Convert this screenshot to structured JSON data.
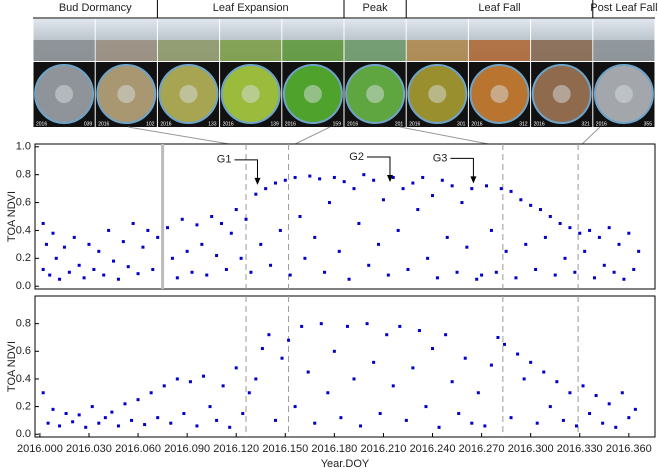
{
  "photo_strip": {
    "phases": [
      "Bud Dormancy",
      "Leaf Expansion",
      "Peak",
      "Leaf Fall",
      "Post Leaf Fall"
    ],
    "photos": [
      {
        "year": "2016",
        "doy": "039"
      },
      {
        "year": "2016",
        "doy": "102"
      },
      {
        "year": "2016",
        "doy": "133"
      },
      {
        "year": "2016",
        "doy": "139"
      },
      {
        "year": "2016",
        "doy": "159"
      },
      {
        "year": "2016",
        "doy": "201"
      },
      {
        "year": "2016",
        "doy": "301"
      },
      {
        "year": "2016",
        "doy": "312"
      },
      {
        "year": "2016",
        "doy": "321"
      },
      {
        "year": "2016",
        "doy": "355"
      }
    ]
  },
  "chart_data": [
    {
      "type": "scatter",
      "ylabel": "TOA NDVI",
      "color": "#0000cc",
      "xlim": [
        2015.997,
        2016.376
      ],
      "ylim": [
        -0.02,
        1.02
      ],
      "yticks": [
        {
          "value": 0,
          "label": "0.0"
        },
        0.2,
        0.4,
        0.6,
        0.8,
        {
          "value": 1,
          "label": "1.0"
        }
      ],
      "vlines": [
        2016.126,
        2016.152,
        2016.283,
        2016.329
      ],
      "band": [
        2016.075
      ],
      "annotations": [
        {
          "text": "G1",
          "x": 2016.133,
          "y": 0.72
        },
        {
          "text": "G2",
          "x": 2016.214,
          "y": 0.74
        },
        {
          "text": "G3",
          "x": 2016.265,
          "y": 0.73
        }
      ],
      "x": [
        2016.002,
        2016.002,
        2016.004,
        2016.006,
        2016.008,
        2016.01,
        2016.012,
        2016.015,
        2016.018,
        2016.021,
        2016.024,
        2016.027,
        2016.03,
        2016.033,
        2016.036,
        2016.039,
        2016.042,
        2016.045,
        2016.048,
        2016.051,
        2016.054,
        2016.057,
        2016.06,
        2016.063,
        2016.066,
        2016.069,
        2016.072,
        2016.078,
        2016.081,
        2016.084,
        2016.087,
        2016.09,
        2016.093,
        2016.096,
        2016.099,
        2016.102,
        2016.105,
        2016.108,
        2016.111,
        2016.114,
        2016.117,
        2016.12,
        2016.123,
        2016.126,
        2016.129,
        2016.132,
        2016.135,
        2016.138,
        2016.141,
        2016.144,
        2016.147,
        2016.15,
        2016.153,
        2016.156,
        2016.159,
        2016.162,
        2016.165,
        2016.168,
        2016.171,
        2016.174,
        2016.177,
        2016.18,
        2016.183,
        2016.186,
        2016.189,
        2016.192,
        2016.195,
        2016.198,
        2016.201,
        2016.204,
        2016.207,
        2016.21,
        2016.213,
        2016.216,
        2016.219,
        2016.222,
        2016.225,
        2016.228,
        2016.231,
        2016.234,
        2016.237,
        2016.24,
        2016.243,
        2016.246,
        2016.249,
        2016.252,
        2016.255,
        2016.258,
        2016.261,
        2016.264,
        2016.267,
        2016.27,
        2016.273,
        2016.276,
        2016.279,
        2016.282,
        2016.285,
        2016.288,
        2016.291,
        2016.294,
        2016.297,
        2016.3,
        2016.303,
        2016.306,
        2016.309,
        2016.312,
        2016.315,
        2016.318,
        2016.321,
        2016.324,
        2016.327,
        2016.33,
        2016.333,
        2016.336,
        2016.339,
        2016.342,
        2016.345,
        2016.348,
        2016.351,
        2016.354,
        2016.357,
        2016.36,
        2016.363,
        2016.366
      ],
      "values": [
        0.45,
        0.12,
        0.3,
        0.08,
        0.38,
        0.2,
        0.05,
        0.28,
        0.1,
        0.35,
        0.15,
        0.06,
        0.3,
        0.12,
        0.25,
        0.08,
        0.4,
        0.18,
        0.05,
        0.32,
        0.14,
        0.45,
        0.09,
        0.28,
        0.4,
        0.12,
        0.35,
        0.42,
        0.2,
        0.06,
        0.48,
        0.25,
        0.1,
        0.44,
        0.3,
        0.08,
        0.5,
        0.22,
        0.45,
        0.12,
        0.38,
        0.55,
        0.2,
        0.48,
        0.1,
        0.66,
        0.3,
        0.7,
        0.15,
        0.74,
        0.4,
        0.76,
        0.08,
        0.78,
        0.5,
        0.2,
        0.79,
        0.35,
        0.77,
        0.1,
        0.6,
        0.78,
        0.25,
        0.75,
        0.05,
        0.7,
        0.45,
        0.8,
        0.15,
        0.76,
        0.3,
        0.62,
        0.08,
        0.78,
        0.4,
        0.7,
        0.12,
        0.74,
        0.55,
        0.78,
        0.2,
        0.65,
        0.06,
        0.76,
        0.35,
        0.72,
        0.1,
        0.6,
        0.28,
        0.7,
        0.05,
        0.08,
        0.72,
        0.4,
        0.1,
        0.7,
        0.25,
        0.68,
        0.06,
        0.62,
        0.3,
        0.58,
        0.12,
        0.55,
        0.35,
        0.5,
        0.08,
        0.45,
        0.2,
        0.42,
        0.1,
        0.38,
        0.25,
        0.4,
        0.06,
        0.35,
        0.15,
        0.42,
        0.1,
        0.3,
        0.05,
        0.38,
        0.12,
        0.25
      ]
    },
    {
      "type": "scatter",
      "ylabel": "TOA NDVI",
      "xlabel": "Year.DOY",
      "color": "#0000cc",
      "xlim": [
        2015.997,
        2016.376
      ],
      "ylim": [
        -0.02,
        1.0
      ],
      "yticks": [
        {
          "value": 0,
          "label": "0.0"
        },
        0.2,
        0.4,
        0.6,
        0.8
      ],
      "xticks": [
        {
          "value": 2016.0,
          "label": "2016.000"
        },
        {
          "value": 2016.03,
          "label": "2016.030"
        },
        {
          "value": 2016.06,
          "label": "2016.060"
        },
        {
          "value": 2016.09,
          "label": "2016.090"
        },
        {
          "value": 2016.12,
          "label": "2016.120"
        },
        {
          "value": 2016.15,
          "label": "2016.150"
        },
        {
          "value": 2016.18,
          "label": "2016.180"
        },
        {
          "value": 2016.21,
          "label": "2016.210"
        },
        {
          "value": 2016.24,
          "label": "2016.240"
        },
        {
          "value": 2016.27,
          "label": "2016.270"
        },
        {
          "value": 2016.3,
          "label": "2016.300"
        },
        {
          "value": 2016.33,
          "label": "2016.330"
        },
        {
          "value": 2016.36,
          "label": "2016.360"
        }
      ],
      "vlines": [
        2016.126,
        2016.152,
        2016.283,
        2016.329
      ],
      "x": [
        2016.002,
        2016.005,
        2016.008,
        2016.012,
        2016.016,
        2016.02,
        2016.024,
        2016.028,
        2016.032,
        2016.036,
        2016.04,
        2016.044,
        2016.048,
        2016.052,
        2016.056,
        2016.06,
        2016.064,
        2016.068,
        2016.072,
        2016.076,
        2016.08,
        2016.084,
        2016.088,
        2016.092,
        2016.096,
        2016.1,
        2016.104,
        2016.108,
        2016.112,
        2016.116,
        2016.12,
        2016.124,
        2016.128,
        2016.132,
        2016.136,
        2016.14,
        2016.144,
        2016.148,
        2016.152,
        2016.156,
        2016.16,
        2016.164,
        2016.168,
        2016.172,
        2016.176,
        2016.18,
        2016.184,
        2016.188,
        2016.192,
        2016.196,
        2016.2,
        2016.204,
        2016.208,
        2016.212,
        2016.216,
        2016.22,
        2016.224,
        2016.228,
        2016.232,
        2016.236,
        2016.24,
        2016.244,
        2016.248,
        2016.252,
        2016.256,
        2016.26,
        2016.264,
        2016.268,
        2016.272,
        2016.276,
        2016.28,
        2016.284,
        2016.288,
        2016.292,
        2016.296,
        2016.3,
        2016.304,
        2016.308,
        2016.312,
        2016.316,
        2016.32,
        2016.324,
        2016.328,
        2016.332,
        2016.336,
        2016.34,
        2016.344,
        2016.348,
        2016.352,
        2016.356,
        2016.36,
        2016.364
      ],
      "values": [
        0.3,
        0.08,
        0.18,
        0.06,
        0.15,
        0.09,
        0.14,
        0.05,
        0.2,
        0.08,
        0.12,
        0.16,
        0.06,
        0.22,
        0.1,
        0.25,
        0.07,
        0.3,
        0.12,
        0.35,
        0.08,
        0.4,
        0.15,
        0.38,
        0.06,
        0.42,
        0.2,
        0.1,
        0.35,
        0.05,
        0.48,
        0.15,
        0.3,
        0.4,
        0.62,
        0.72,
        0.1,
        0.55,
        0.68,
        0.2,
        0.78,
        0.45,
        0.08,
        0.8,
        0.3,
        0.6,
        0.12,
        0.78,
        0.4,
        0.06,
        0.8,
        0.52,
        0.15,
        0.72,
        0.35,
        0.78,
        0.1,
        0.48,
        0.75,
        0.2,
        0.62,
        0.05,
        0.72,
        0.38,
        0.15,
        0.55,
        0.08,
        0.3,
        0.06,
        0.5,
        0.7,
        0.65,
        0.12,
        0.58,
        0.4,
        0.52,
        0.08,
        0.45,
        0.2,
        0.38,
        0.1,
        0.3,
        0.06,
        0.35,
        0.15,
        0.28,
        0.08,
        0.22,
        0.05,
        0.3,
        0.12,
        0.18
      ]
    }
  ]
}
